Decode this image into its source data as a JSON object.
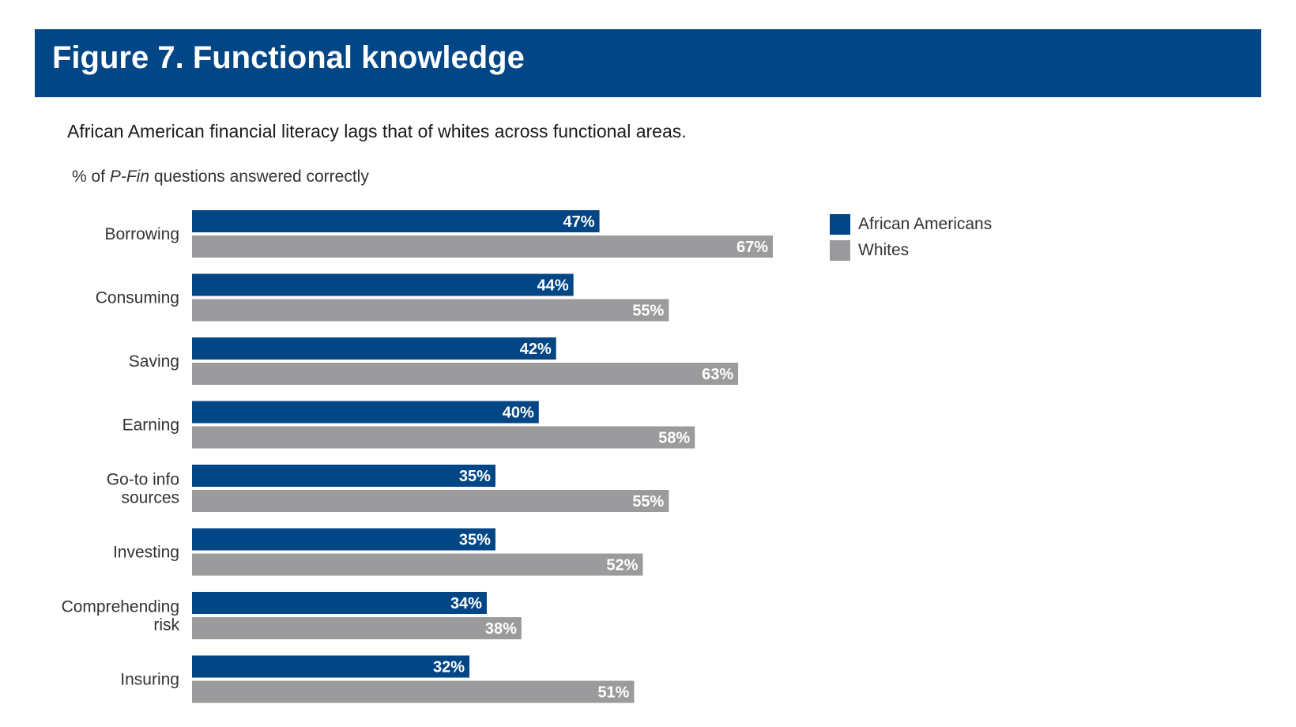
{
  "header": {
    "title": "Figure 7. Functional knowledge",
    "subtitle": "African American financial literacy lags that of whites across functional areas.",
    "axis_note_prefix": "% of ",
    "axis_note_italic": "P-Fin",
    "axis_note_suffix": " questions answered correctly"
  },
  "colors": {
    "title_bar": "#024686",
    "series_1": "#024686",
    "series_2": "#9b9b9d"
  },
  "chart_data": {
    "type": "bar",
    "orientation": "horizontal",
    "categories": [
      [
        "Borrowing"
      ],
      [
        "Consuming"
      ],
      [
        "Saving"
      ],
      [
        "Earning"
      ],
      [
        "Go-to info",
        "sources"
      ],
      [
        "Investing"
      ],
      [
        "Comprehending",
        "risk"
      ],
      [
        "Insuring"
      ]
    ],
    "series": [
      {
        "name": "African Americans",
        "values": [
          47,
          44,
          42,
          40,
          35,
          35,
          34,
          32
        ],
        "labels": [
          "47%",
          "44%",
          "42%",
          "40%",
          "35%",
          "35%",
          "34%",
          "32%"
        ]
      },
      {
        "name": "Whites",
        "values": [
          67,
          55,
          63,
          58,
          55,
          52,
          38,
          51
        ],
        "labels": [
          "67%",
          "55%",
          "63%",
          "58%",
          "55%",
          "52%",
          "38%",
          "51%"
        ]
      }
    ],
    "legend_position": "right",
    "grid": false
  }
}
